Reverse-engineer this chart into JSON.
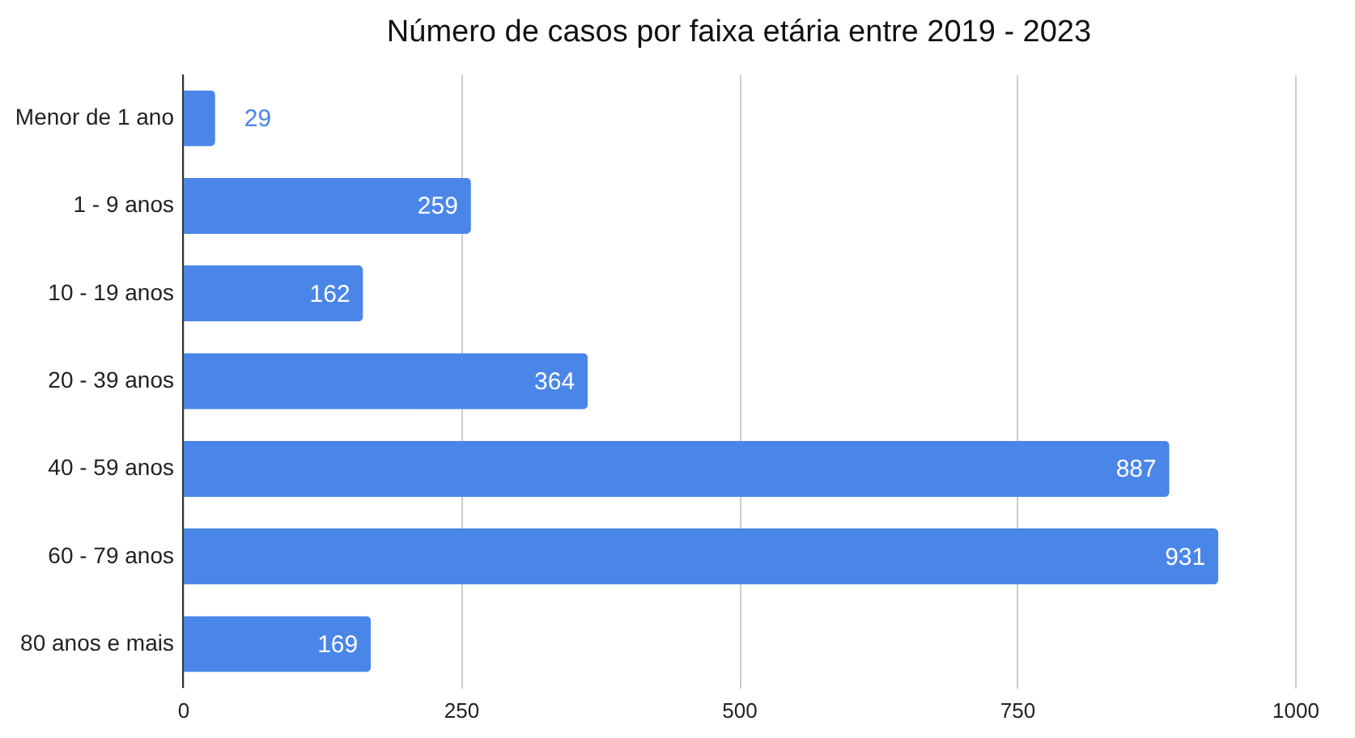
{
  "chart_data": {
    "type": "bar",
    "orientation": "horizontal",
    "title": "Número de casos por faixa etária entre 2019 - 2023",
    "categories": [
      "Menor de 1 ano",
      "1 - 9 anos",
      "10 - 19 anos",
      "20 - 39 anos",
      "40 - 59 anos",
      "60 - 79 anos",
      "80 anos e mais"
    ],
    "values": [
      29,
      259,
      162,
      364,
      887,
      931,
      169
    ],
    "color": "#4a86e8",
    "xlim": [
      0,
      1000
    ],
    "xticks": [
      0,
      250,
      500,
      750,
      1000
    ],
    "grid": "x",
    "data_labels": true
  }
}
